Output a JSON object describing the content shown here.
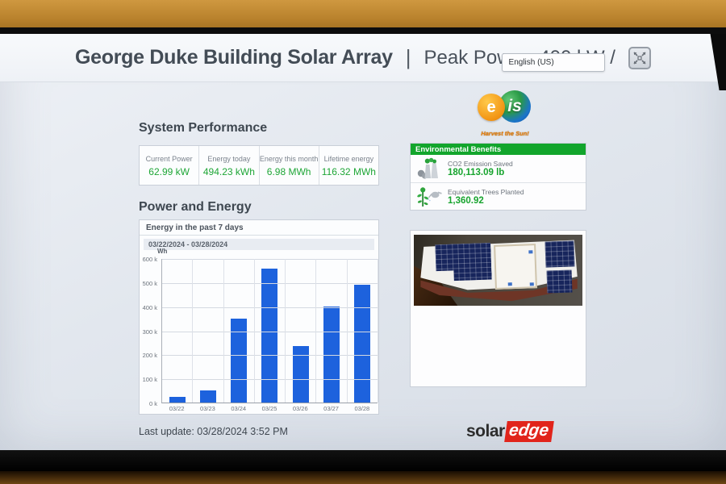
{
  "header": {
    "site_title": "George Duke Building Solar Array",
    "separator": "|",
    "peak_power_label": "Peak Power: 400 kW /",
    "language": "English (US)"
  },
  "system_performance": {
    "title": "System Performance",
    "metrics": [
      {
        "label": "Current Power",
        "value": "62.99 kW"
      },
      {
        "label": "Energy today",
        "value": "494.23 kWh"
      },
      {
        "label": "Energy this month",
        "value": "6.98 MWh"
      },
      {
        "label": "Lifetime energy",
        "value": "116.32 MWh"
      }
    ]
  },
  "environmental_benefits": {
    "title": "Environmental Benefits",
    "items": [
      {
        "icon": "factory-co2-icon",
        "label": "CO2 Emission Saved",
        "value": "180,113.09 lb"
      },
      {
        "icon": "tree-planting-icon",
        "label": "Equivalent Trees Planted",
        "value": "1,360.92"
      }
    ]
  },
  "power_and_energy": {
    "title": "Power and Energy"
  },
  "chart_data": {
    "type": "bar",
    "title": "Energy in the past 7 days",
    "subtitle": "03/22/2024 - 03/28/2024",
    "ylabel": "Wh",
    "categories": [
      "03/22",
      "03/23",
      "03/24",
      "03/25",
      "03/26",
      "03/27",
      "03/28"
    ],
    "values": [
      25000,
      50000,
      350000,
      555000,
      235000,
      400000,
      490000
    ],
    "ylim": [
      0,
      600000
    ],
    "ytick_labels": [
      "0 k",
      "100 k",
      "200 k",
      "300 k",
      "400 k",
      "500 k",
      "600 k"
    ],
    "grid": true,
    "legend": false,
    "bar_color": "#1d62dd"
  },
  "footer": {
    "last_update": "Last update: 03/28/2024 3:52 PM"
  },
  "branding": {
    "eis_logo": {
      "text_e": "e",
      "text_is": "is",
      "tagline": "Harvest the Sun!"
    },
    "solaredge": {
      "part1": "solar",
      "part2": "edge"
    }
  },
  "colors": {
    "accent_green": "#17a42e",
    "env_header_green": "#12a52c",
    "bar_blue": "#1d62dd",
    "brand_red": "#e1241b",
    "wall_orange": "#b8812c"
  }
}
